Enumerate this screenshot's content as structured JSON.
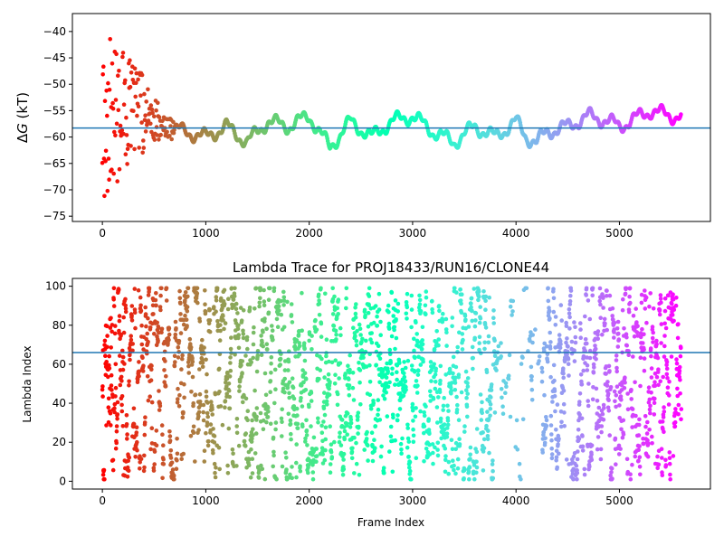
{
  "chart_data": [
    {
      "type": "scatter",
      "title": "",
      "xlabel": "",
      "ylabel": "ΔG (kT)",
      "ylabel_delta": "Δ",
      "ylabel_var": "G",
      "ylabel_unit": " (kT)",
      "xlim": [
        -290,
        5880
      ],
      "ylim": [
        -76,
        -36.6
      ],
      "xticks": [
        0,
        1000,
        2000,
        3000,
        4000,
        5000
      ],
      "xtick_labels": [
        "0",
        "1000",
        "2000",
        "3000",
        "4000",
        "5000"
      ],
      "yticks": [
        -40,
        -45,
        -50,
        -55,
        -60,
        -65,
        -70,
        -75
      ],
      "ytick_labels": [
        "−40",
        "−45",
        "−50",
        "−55",
        "−60",
        "−65",
        "−70",
        "−75"
      ],
      "hline": -58.3,
      "hline_color": "#1f77b4",
      "colormap": "rainbow (reversed: red at frame 0, violet at last frame)",
      "n_frames": 5600,
      "trace_keypoints": {
        "x": [
          200,
          500,
          600,
          800,
          1000,
          1200,
          1400,
          1600,
          1800,
          2000,
          2100,
          2200,
          2400,
          2600,
          2800,
          3000,
          3200,
          3400,
          3600,
          3800,
          4000,
          4100,
          4200,
          4300,
          4500,
          4700,
          4900,
          5000,
          5100,
          5300,
          5500,
          5600
        ],
        "y": [
          -55,
          -56,
          -58,
          -59,
          -60,
          -58,
          -61,
          -57,
          -58,
          -56,
          -59,
          -62,
          -57,
          -60,
          -57,
          -56,
          -59,
          -61,
          -58,
          -60,
          -57,
          -60,
          -61,
          -59,
          -58,
          -56,
          -57,
          -58,
          -57,
          -55,
          -56,
          -56
        ]
      },
      "early_scatter_y_range": [
        -73,
        -38.5
      ]
    },
    {
      "type": "scatter",
      "title": "Lambda Trace for PROJ18433/RUN16/CLONE44",
      "xlabel": "Frame Index",
      "ylabel": "Lambda Index",
      "xlim": [
        -290,
        5880
      ],
      "ylim": [
        -4,
        104
      ],
      "xticks": [
        0,
        1000,
        2000,
        3000,
        4000,
        5000
      ],
      "xtick_labels": [
        "0",
        "1000",
        "2000",
        "3000",
        "4000",
        "5000"
      ],
      "yticks": [
        0,
        20,
        40,
        60,
        80,
        100
      ],
      "ytick_labels": [
        "0",
        "20",
        "40",
        "60",
        "80",
        "100"
      ],
      "hline": 66,
      "hline_color": "#1f77b4",
      "colormap": "rainbow (reversed: red at frame 0, violet at last frame)",
      "n_frames": 5600,
      "lambda_range": [
        1,
        99
      ],
      "sparse_window": [
        3800,
        4250
      ]
    }
  ]
}
